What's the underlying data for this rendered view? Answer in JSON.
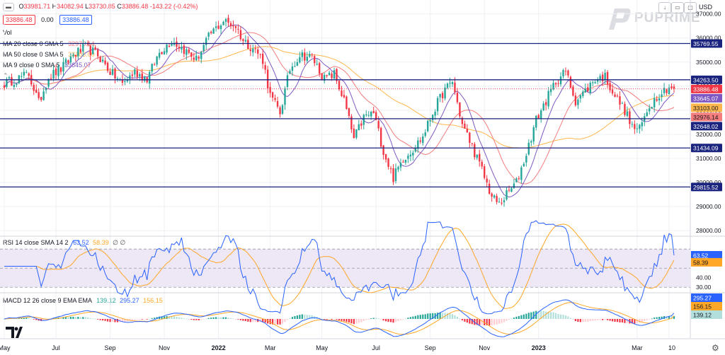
{
  "header": {
    "open_label": "O",
    "open": "33981.71",
    "high_label": "H",
    "high": "34082.94",
    "low_label": "L",
    "low": "33730.85",
    "close_label": "C",
    "close": "33886.48",
    "change": "-143.22 (-0.42%)",
    "bid": "33886.48",
    "spread": "0.00",
    "ask": "33886.48",
    "currency": "USD",
    "brand": "PUPRIME"
  },
  "legends": {
    "vol": "Vol",
    "ma20_label": "MA 20 close 0 SMA 5",
    "ma20_value": "32976.14",
    "ma50_label": "MA 50 close 0 SMA 5",
    "ma50_value": "33103.00",
    "ma9_label": "MA 9 close 0 SMA 5",
    "ma9_value": "33645.07",
    "rsi_label": "RSI 14 close SMA 14 2",
    "rsi_value": "63.52",
    "rsi_sma_value": "58.39",
    "rsi_extra": "∅ ∅",
    "macd_label": "MACD 12 26 close 9 EMA EMA",
    "macd_hist": "139.12",
    "macd_line": "295.27",
    "macd_signal": "156.15"
  },
  "colors": {
    "up": "#26a69a",
    "down": "#f23645",
    "ma20": "#f47c7c",
    "ma50": "#ffb74d",
    "ma9": "#7e57c2",
    "level": "#1a237e",
    "rsi": "#2962ff",
    "rsi_sma": "#ffa726",
    "macd": "#2962ff",
    "signal": "#ffa726",
    "grid": "#eef0f3",
    "band": "#ede7f6"
  },
  "chart_data": [
    {
      "type": "candlestick",
      "title": "",
      "x_ticks": [
        "May",
        "Jul",
        "Sep",
        "Nov",
        "2022",
        "Mar",
        "May",
        "Jul",
        "Sep",
        "Nov",
        "2023",
        "Mar",
        "10"
      ],
      "y_ticks": [
        28000,
        29000,
        30000,
        31000,
        32000,
        33000,
        34000,
        35000,
        36000,
        37000
      ],
      "ylim": [
        27800,
        37400
      ],
      "anchors": [
        [
          0,
          34100
        ],
        [
          5,
          34300
        ],
        [
          10,
          34500
        ],
        [
          14,
          33300
        ],
        [
          18,
          34400
        ],
        [
          23,
          34700
        ],
        [
          28,
          35300
        ],
        [
          33,
          35600
        ],
        [
          38,
          35300
        ],
        [
          43,
          34600
        ],
        [
          48,
          34100
        ],
        [
          53,
          34600
        ],
        [
          58,
          34300
        ],
        [
          63,
          35400
        ],
        [
          68,
          35900
        ],
        [
          72,
          35600
        ],
        [
          78,
          35100
        ],
        [
          84,
          36200
        ],
        [
          89,
          36700
        ],
        [
          94,
          36500
        ],
        [
          97,
          35900
        ],
        [
          102,
          35500
        ],
        [
          105,
          35100
        ],
        [
          108,
          33600
        ],
        [
          112,
          32900
        ],
        [
          116,
          34700
        ],
        [
          120,
          35300
        ],
        [
          125,
          35200
        ],
        [
          130,
          34300
        ],
        [
          134,
          34500
        ],
        [
          138,
          33400
        ],
        [
          142,
          31800
        ],
        [
          146,
          32700
        ],
        [
          150,
          32900
        ],
        [
          154,
          31300
        ],
        [
          158,
          30200
        ],
        [
          162,
          31000
        ],
        [
          166,
          31400
        ],
        [
          170,
          31900
        ],
        [
          174,
          32900
        ],
        [
          178,
          33700
        ],
        [
          182,
          34200
        ],
        [
          186,
          32400
        ],
        [
          190,
          31500
        ],
        [
          194,
          30500
        ],
        [
          198,
          29400
        ],
        [
          201,
          29100
        ],
        [
          204,
          29500
        ],
        [
          208,
          30000
        ],
        [
          212,
          31200
        ],
        [
          216,
          32600
        ],
        [
          220,
          33400
        ],
        [
          224,
          34200
        ],
        [
          228,
          34600
        ],
        [
          232,
          33400
        ],
        [
          236,
          33800
        ],
        [
          240,
          34300
        ],
        [
          244,
          34400
        ],
        [
          248,
          33600
        ],
        [
          252,
          33000
        ],
        [
          255,
          32300
        ],
        [
          258,
          32200
        ],
        [
          262,
          33200
        ],
        [
          266,
          33700
        ],
        [
          270,
          33980
        ],
        [
          272,
          33886
        ]
      ],
      "last": {
        "open": 33981.71,
        "high": 34082.94,
        "low": 33730.85,
        "close": 33886.48
      },
      "ma20_last": 32976.14,
      "ma50_last": 33103.0,
      "ma9_last": 33645.07,
      "levels": [
        35769.55,
        34263.5,
        32648.02,
        31434.09,
        29815.52
      ],
      "price_tags": [
        {
          "label": "35769.55",
          "kind": "level"
        },
        {
          "label": "34263.50",
          "kind": "level"
        },
        {
          "label": "33886.48",
          "kind": "price"
        },
        {
          "label": "33645.07",
          "kind": "ma9"
        },
        {
          "label": "33103.00",
          "kind": "ma50"
        },
        {
          "label": "32976.14",
          "kind": "ma20"
        },
        {
          "label": "32648.02",
          "kind": "level"
        },
        {
          "label": "31434.09",
          "kind": "level"
        },
        {
          "label": "29815.52",
          "kind": "level"
        }
      ]
    },
    {
      "type": "line",
      "title": "",
      "y_ticks": [
        40.0,
        30.0
      ],
      "ylim": [
        25,
        82
      ],
      "band": [
        30,
        70
      ],
      "rsi_last": 63.52,
      "sma_last": 58.39
    },
    {
      "type": "bar",
      "title": "",
      "macd_last": 295.27,
      "signal_last": 156.15,
      "hist_last": 139.12
    }
  ]
}
